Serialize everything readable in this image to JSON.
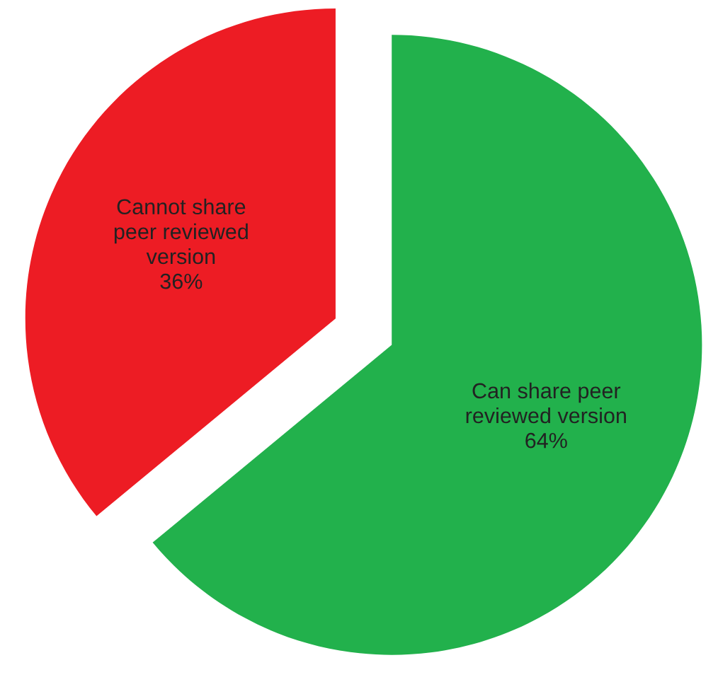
{
  "chart_data": {
    "type": "pie",
    "categories": [
      "Can share peer\nreviewed version",
      "Cannot share\npeer reviewed\nversion"
    ],
    "values": [
      64,
      36
    ],
    "colors": [
      "#22b14c",
      "#ed1c24"
    ],
    "value_labels": [
      "64%",
      "36%"
    ]
  }
}
